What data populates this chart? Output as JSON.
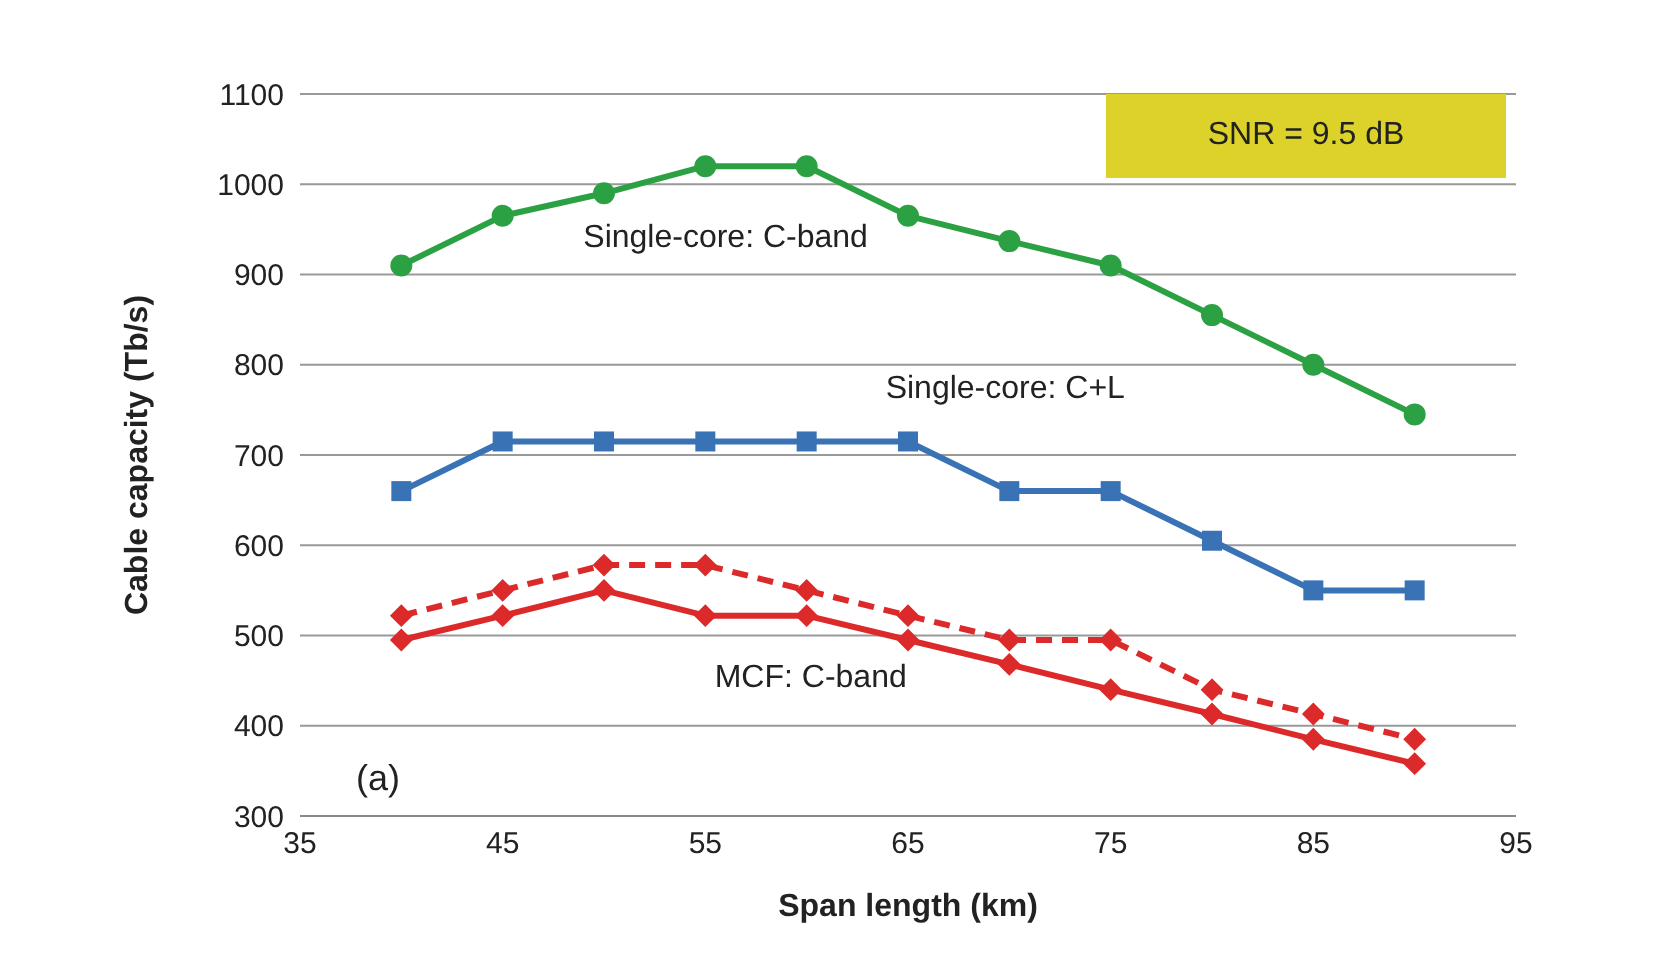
{
  "chart_data": {
    "type": "line",
    "xlabel": "Span length (km)",
    "ylabel": "Cable capacity (Tb/s)",
    "x": [
      40,
      45,
      50,
      55,
      60,
      65,
      70,
      75,
      80,
      85,
      90
    ],
    "xlim": [
      35,
      95
    ],
    "xticks": [
      35,
      45,
      55,
      65,
      75,
      85,
      95
    ],
    "ylim": [
      300,
      1100
    ],
    "yticks": [
      300,
      400,
      500,
      600,
      700,
      800,
      900,
      1000,
      1100
    ],
    "grid": "y",
    "legend": false,
    "series": [
      {
        "name": "Single-core: C-band",
        "color": "#2ca143",
        "marker": "circle",
        "line_style": "solid",
        "values": [
          910,
          965,
          990,
          1020,
          1020,
          965,
          937,
          910,
          855,
          800,
          745
        ]
      },
      {
        "name": "Single-core: C+L",
        "color": "#3a73b5",
        "marker": "square",
        "line_style": "solid",
        "values": [
          660,
          715,
          715,
          715,
          715,
          715,
          660,
          660,
          605,
          550,
          550
        ]
      },
      {
        "name": "MCF: C-band",
        "color": "#dc2a2a",
        "marker": "diamond",
        "line_style": "solid",
        "values": [
          495,
          522,
          550,
          522,
          522,
          495,
          468,
          440,
          413,
          385,
          358
        ]
      },
      {
        "color": "#dc2a2a",
        "marker": "diamond",
        "line_style": "dashed",
        "values": [
          522,
          550,
          578,
          578,
          550,
          522,
          495,
          495,
          440,
          413,
          385
        ]
      }
    ],
    "annotations": [
      "(a)",
      "SNR = 9.5 dB"
    ]
  }
}
